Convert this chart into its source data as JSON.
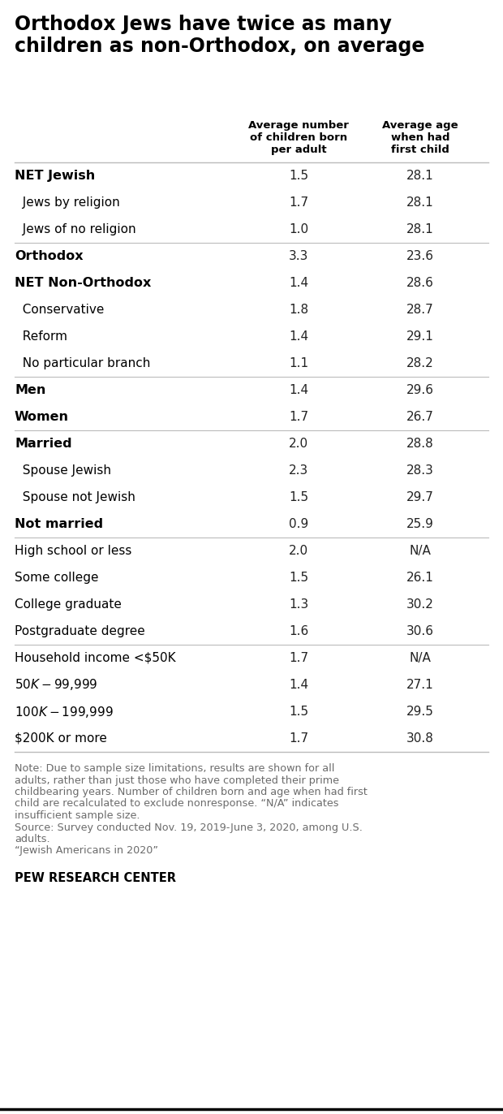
{
  "title": "Orthodox Jews have twice as many\nchildren as non-Orthodox, on average",
  "col1_header": "Average number\nof children born\nper adult",
  "col2_header": "Average age\nwhen had\nfirst child",
  "rows": [
    {
      "label": "NET Jewish",
      "indent": 0,
      "bold": true,
      "col1": "1.5",
      "col2": "28.1",
      "sep_before": false
    },
    {
      "label": "  Jews by religion",
      "indent": 0,
      "bold": false,
      "col1": "1.7",
      "col2": "28.1",
      "sep_before": false
    },
    {
      "label": "  Jews of no religion",
      "indent": 0,
      "bold": false,
      "col1": "1.0",
      "col2": "28.1",
      "sep_before": false
    },
    {
      "label": "Orthodox",
      "indent": 0,
      "bold": true,
      "col1": "3.3",
      "col2": "23.6",
      "sep_before": true
    },
    {
      "label": "NET Non-Orthodox",
      "indent": 0,
      "bold": true,
      "col1": "1.4",
      "col2": "28.6",
      "sep_before": false
    },
    {
      "label": "  Conservative",
      "indent": 0,
      "bold": false,
      "col1": "1.8",
      "col2": "28.7",
      "sep_before": false
    },
    {
      "label": "  Reform",
      "indent": 0,
      "bold": false,
      "col1": "1.4",
      "col2": "29.1",
      "sep_before": false
    },
    {
      "label": "  No particular branch",
      "indent": 0,
      "bold": false,
      "col1": "1.1",
      "col2": "28.2",
      "sep_before": false
    },
    {
      "label": "Men",
      "indent": 0,
      "bold": true,
      "col1": "1.4",
      "col2": "29.6",
      "sep_before": true
    },
    {
      "label": "Women",
      "indent": 0,
      "bold": true,
      "col1": "1.7",
      "col2": "26.7",
      "sep_before": false
    },
    {
      "label": "Married",
      "indent": 0,
      "bold": true,
      "col1": "2.0",
      "col2": "28.8",
      "sep_before": true
    },
    {
      "label": "  Spouse Jewish",
      "indent": 0,
      "bold": false,
      "col1": "2.3",
      "col2": "28.3",
      "sep_before": false
    },
    {
      "label": "  Spouse not Jewish",
      "indent": 0,
      "bold": false,
      "col1": "1.5",
      "col2": "29.7",
      "sep_before": false
    },
    {
      "label": "Not married",
      "indent": 0,
      "bold": true,
      "col1": "0.9",
      "col2": "25.9",
      "sep_before": false
    },
    {
      "label": "High school or less",
      "indent": 0,
      "bold": false,
      "col1": "2.0",
      "col2": "N/A",
      "sep_before": true
    },
    {
      "label": "Some college",
      "indent": 0,
      "bold": false,
      "col1": "1.5",
      "col2": "26.1",
      "sep_before": false
    },
    {
      "label": "College graduate",
      "indent": 0,
      "bold": false,
      "col1": "1.3",
      "col2": "30.2",
      "sep_before": false
    },
    {
      "label": "Postgraduate degree",
      "indent": 0,
      "bold": false,
      "col1": "1.6",
      "col2": "30.6",
      "sep_before": false
    },
    {
      "label": "Household income <$50K",
      "indent": 0,
      "bold": false,
      "col1": "1.7",
      "col2": "N/A",
      "sep_before": true
    },
    {
      "label": "$50K-$99,999",
      "indent": 0,
      "bold": false,
      "col1": "1.4",
      "col2": "27.1",
      "sep_before": false
    },
    {
      "label": "$100K-$199,999",
      "indent": 0,
      "bold": false,
      "col1": "1.5",
      "col2": "29.5",
      "sep_before": false
    },
    {
      "label": "$200K or more",
      "indent": 0,
      "bold": false,
      "col1": "1.7",
      "col2": "30.8",
      "sep_before": false
    }
  ],
  "note_lines": [
    "Note: Due to sample size limitations, results are shown for all",
    "adults, rather than just those who have completed their prime",
    "childbearing years. Number of children born and age when had first",
    "child are recalculated to exclude nonresponse. “N/A” indicates",
    "insufficient sample size.",
    "Source: Survey conducted Nov. 19, 2019-June 3, 2020, among U.S.",
    "adults.",
    "“Jewish Americans in 2020”"
  ],
  "source_label": "PEW RESEARCH CENTER",
  "bg_color": "#ffffff",
  "text_color": "#000000",
  "note_color": "#6b6b6b",
  "sep_color": "#bbbbbb",
  "title_color": "#000000",
  "header_color": "#000000",
  "data_color": "#222222"
}
